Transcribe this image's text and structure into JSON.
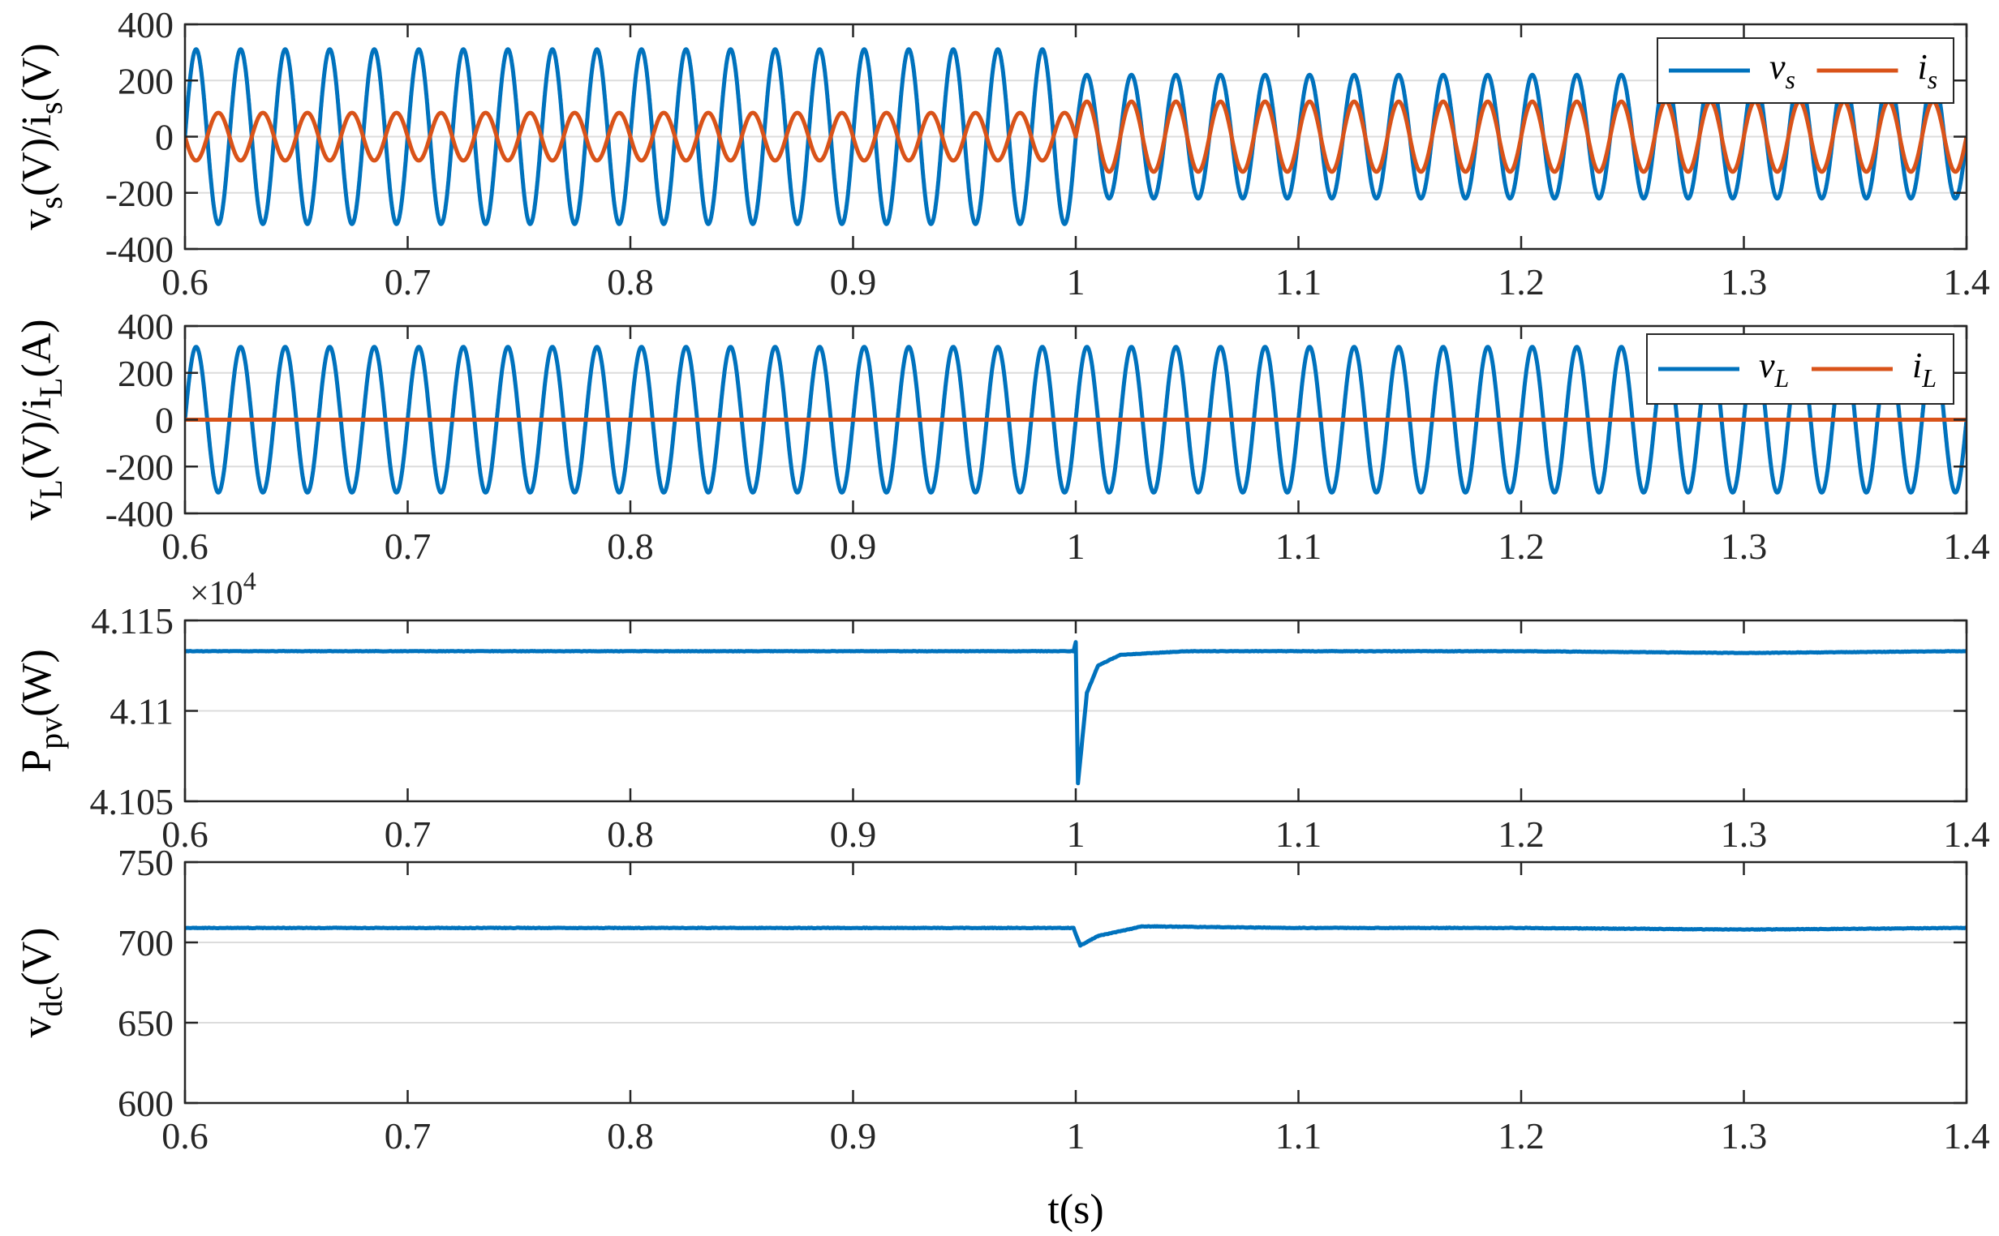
{
  "chart_data": [
    {
      "type": "line",
      "ylabel": "v_s(V)/i_s(V)",
      "xlim": [
        0.6,
        1.4
      ],
      "ylim": [
        -400,
        400
      ],
      "xticks": [
        "0.6",
        "0.7",
        "0.8",
        "0.9",
        "1",
        "1.1",
        "1.2",
        "1.3",
        "1.4"
      ],
      "yticks": [
        "400",
        "200",
        "0",
        "-200",
        "-400"
      ],
      "grid": "y",
      "legend": "top-right",
      "series": [
        {
          "name": "v_s",
          "color": "#0072BD",
          "waveform": "sine",
          "frequency_hz": 50,
          "amplitude_segments": [
            {
              "x": [
                0.6,
                1.0
              ],
              "amplitude": 311
            },
            {
              "x": [
                1.0,
                1.4
              ],
              "amplitude": 220
            }
          ]
        },
        {
          "name": "i_s",
          "color": "#D95319",
          "waveform": "sine",
          "frequency_hz": 50,
          "phase": "opposite to v_s before 1 s, in phase after 1 s",
          "amplitude_segments": [
            {
              "x": [
                0.6,
                1.0
              ],
              "amplitude": -85
            },
            {
              "x": [
                1.0,
                1.4
              ],
              "amplitude": 125
            }
          ]
        }
      ]
    },
    {
      "type": "line",
      "ylabel": "v_L(V)/i_L(A)",
      "xlim": [
        0.6,
        1.4
      ],
      "ylim": [
        -400,
        400
      ],
      "xticks": [
        "0.6",
        "0.7",
        "0.8",
        "0.9",
        "1",
        "1.1",
        "1.2",
        "1.3",
        "1.4"
      ],
      "yticks": [
        "400",
        "200",
        "0",
        "-200",
        "-400"
      ],
      "grid": "y",
      "legend": "top-right",
      "series": [
        {
          "name": "v_L",
          "color": "#0072BD",
          "waveform": "sine",
          "frequency_hz": 50,
          "amplitude": 311
        },
        {
          "name": "i_L",
          "color": "#D95319",
          "waveform": "constant",
          "value": 0
        }
      ]
    },
    {
      "type": "line",
      "ylabel": "P_pv(W)",
      "axis_multiplier": "×10^4",
      "xlim": [
        0.6,
        1.4
      ],
      "ylim": [
        4.105,
        4.115
      ],
      "xticks": [
        "0.6",
        "0.7",
        "0.8",
        "0.9",
        "1",
        "1.1",
        "1.2",
        "1.3",
        "1.4"
      ],
      "yticks": [
        "4.115",
        "4.11",
        "4.105"
      ],
      "grid": "y",
      "series": [
        {
          "color": "#0072BD",
          "points": [
            [
              0.6,
              4.1133
            ],
            [
              0.8,
              4.1133
            ],
            [
              0.999,
              4.1133
            ],
            [
              1.0,
              4.1138
            ],
            [
              1.001,
              4.106
            ],
            [
              1.005,
              4.111
            ],
            [
              1.01,
              4.1125
            ],
            [
              1.02,
              4.1131
            ],
            [
              1.05,
              4.1133
            ],
            [
              1.2,
              4.1133
            ],
            [
              1.3,
              4.1132
            ],
            [
              1.4,
              4.1133
            ]
          ]
        }
      ]
    },
    {
      "type": "line",
      "ylabel": "v_dc(V)",
      "xlabel": "t(s)",
      "xlim": [
        0.6,
        1.4
      ],
      "ylim": [
        600,
        750
      ],
      "xticks": [
        "0.6",
        "0.7",
        "0.8",
        "0.9",
        "1",
        "1.1",
        "1.2",
        "1.3",
        "1.4"
      ],
      "yticks": [
        "750",
        "700",
        "650",
        "600"
      ],
      "grid": "y",
      "series": [
        {
          "color": "#0072BD",
          "points": [
            [
              0.6,
              709
            ],
            [
              0.8,
              709
            ],
            [
              0.999,
              709
            ],
            [
              1.002,
              698
            ],
            [
              1.01,
              704
            ],
            [
              1.03,
              710
            ],
            [
              1.1,
              709
            ],
            [
              1.2,
              709
            ],
            [
              1.3,
              708
            ],
            [
              1.4,
              709
            ]
          ]
        }
      ]
    }
  ]
}
